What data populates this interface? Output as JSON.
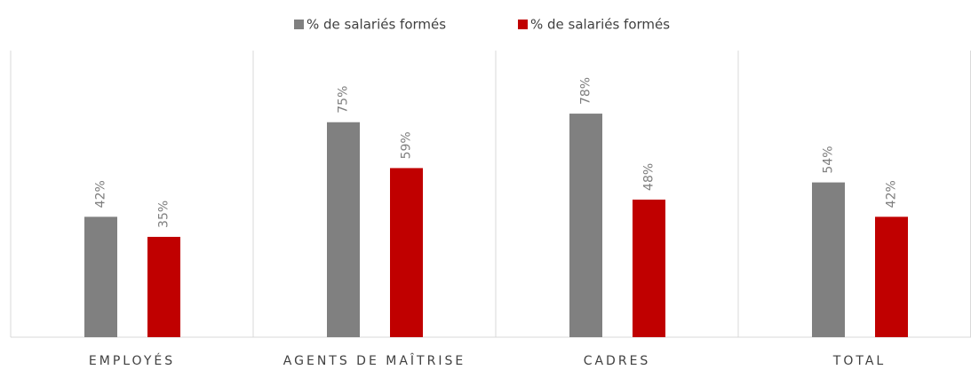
{
  "chart_data": {
    "type": "bar",
    "categories": [
      "EMPLOYÉS",
      "AGENTS DE MAÎTRISE",
      "CADRES",
      "TOTAL"
    ],
    "series": [
      {
        "name": "% de salariés formés",
        "color": "#808080",
        "values": [
          42,
          75,
          78,
          54
        ],
        "value_labels": [
          "42%",
          "75%",
          "78%",
          "54%"
        ]
      },
      {
        "name": "% de salariés formés",
        "color": "#c00000",
        "values": [
          35,
          59,
          48,
          42
        ],
        "value_labels": [
          "35%",
          "59%",
          "48%",
          "42%"
        ]
      }
    ],
    "ylim": [
      0,
      100
    ],
    "legend": "top"
  }
}
